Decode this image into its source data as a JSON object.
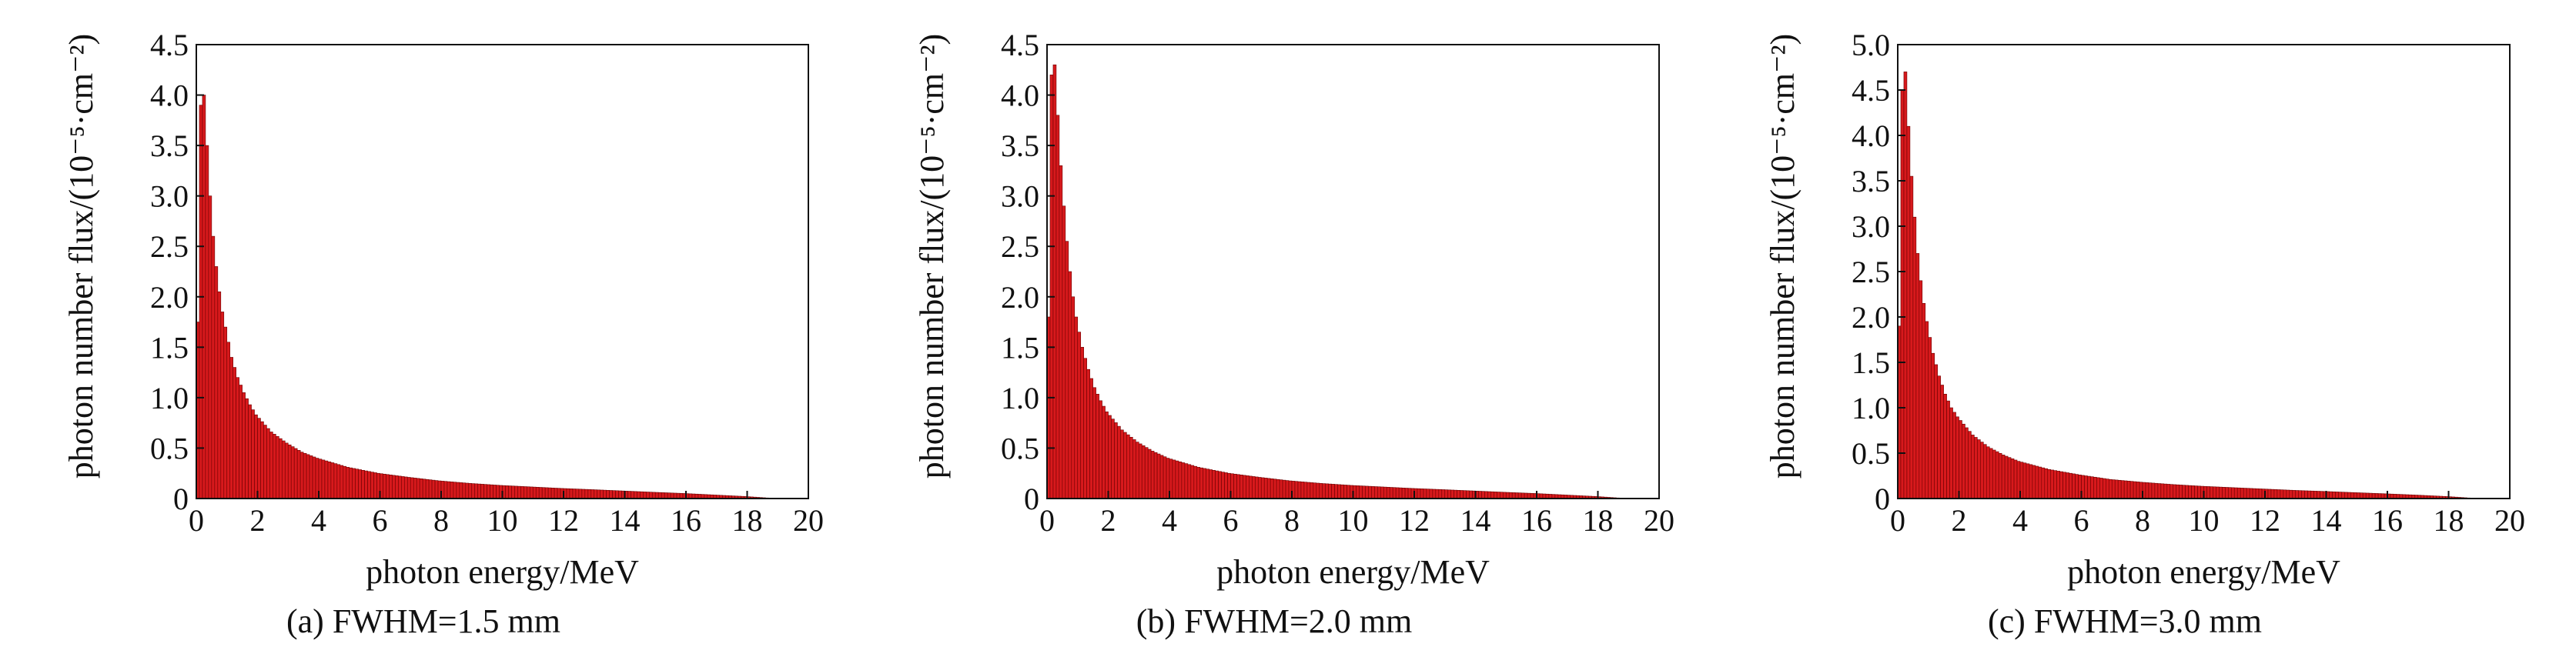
{
  "chart_data": [
    {
      "type": "bar",
      "caption": "(a) FWHM=1.5 mm",
      "xlabel": "photon energy/MeV",
      "ylabel": "photon number flux/(10⁻⁵·cm⁻²)",
      "xlim": [
        0,
        20
      ],
      "ylim": [
        0,
        4.5
      ],
      "xticks": [
        0,
        2,
        4,
        6,
        8,
        10,
        12,
        14,
        16,
        18,
        20
      ],
      "yticks": [
        0,
        0.5,
        1.0,
        1.5,
        2.0,
        2.5,
        3.0,
        3.5,
        4.0,
        4.5
      ],
      "ytick_labels": [
        "0",
        "0.5",
        "1.0",
        "1.5",
        "2.0",
        "2.5",
        "3.0",
        "3.5",
        "4.0",
        "4.5"
      ],
      "bar_width": 0.1,
      "x": [
        0.1,
        0.2,
        0.3,
        0.4,
        0.5,
        0.6,
        0.7,
        0.8,
        0.9,
        1.0,
        1.2,
        1.4,
        1.6,
        1.8,
        2.0,
        2.5,
        3.0,
        3.5,
        4.0,
        5.0,
        6.0,
        7.0,
        8.0,
        9.0,
        10.0,
        11.0,
        12.0,
        13.0,
        14.0,
        15.0,
        16.0,
        17.0,
        18.0,
        19.0
      ],
      "values": [
        1.75,
        3.9,
        4.0,
        3.5,
        3.0,
        2.6,
        2.3,
        2.05,
        1.85,
        1.7,
        1.4,
        1.2,
        1.05,
        0.93,
        0.83,
        0.66,
        0.55,
        0.46,
        0.4,
        0.31,
        0.25,
        0.21,
        0.175,
        0.15,
        0.13,
        0.115,
        0.1,
        0.088,
        0.075,
        0.062,
        0.05,
        0.035,
        0.02,
        0.0
      ],
      "bar_color": "#d7191c",
      "edge_color": "#6b0000",
      "grid": false,
      "legend": "none"
    },
    {
      "type": "bar",
      "caption": "(b) FWHM=2.0 mm",
      "xlabel": "photon energy/MeV",
      "ylabel": "photon number flux/(10⁻⁵·cm⁻²)",
      "xlim": [
        0,
        20
      ],
      "ylim": [
        0,
        4.5
      ],
      "xticks": [
        0,
        2,
        4,
        6,
        8,
        10,
        12,
        14,
        16,
        18,
        20
      ],
      "yticks": [
        0,
        0.5,
        1.0,
        1.5,
        2.0,
        2.5,
        3.0,
        3.5,
        4.0,
        4.5
      ],
      "ytick_labels": [
        "0",
        "0.5",
        "1.0",
        "1.5",
        "2.0",
        "2.5",
        "3.0",
        "3.5",
        "4.0",
        "4.5"
      ],
      "bar_width": 0.1,
      "x": [
        0.1,
        0.2,
        0.3,
        0.4,
        0.5,
        0.6,
        0.7,
        0.8,
        0.9,
        1.0,
        1.2,
        1.4,
        1.6,
        1.8,
        2.0,
        2.5,
        3.0,
        3.5,
        4.0,
        5.0,
        6.0,
        7.0,
        8.0,
        9.0,
        10.0,
        11.0,
        12.0,
        13.0,
        14.0,
        15.0,
        16.0,
        17.0,
        18.0,
        19.0
      ],
      "values": [
        1.8,
        4.2,
        4.3,
        3.8,
        3.3,
        2.9,
        2.55,
        2.25,
        2.0,
        1.8,
        1.5,
        1.28,
        1.1,
        0.97,
        0.86,
        0.68,
        0.56,
        0.47,
        0.4,
        0.31,
        0.25,
        0.21,
        0.175,
        0.15,
        0.13,
        0.115,
        0.1,
        0.088,
        0.075,
        0.062,
        0.05,
        0.035,
        0.02,
        0.0
      ],
      "bar_color": "#d7191c",
      "edge_color": "#6b0000",
      "grid": false,
      "legend": "none"
    },
    {
      "type": "bar",
      "caption": "(c) FWHM=3.0 mm",
      "xlabel": "photon energy/MeV",
      "ylabel": "photon number flux/(10⁻⁵·cm⁻²)",
      "xlim": [
        0,
        20
      ],
      "ylim": [
        0,
        5.0
      ],
      "xticks": [
        0,
        2,
        4,
        6,
        8,
        10,
        12,
        14,
        16,
        18,
        20
      ],
      "yticks": [
        0,
        0.5,
        1.0,
        1.5,
        2.0,
        2.5,
        3.0,
        3.5,
        4.0,
        4.5,
        5.0
      ],
      "ytick_labels": [
        "0",
        "0.5",
        "1.0",
        "1.5",
        "2.0",
        "2.5",
        "3.0",
        "3.5",
        "4.0",
        "4.5",
        "5.0"
      ],
      "bar_width": 0.1,
      "x": [
        0.1,
        0.2,
        0.3,
        0.4,
        0.5,
        0.6,
        0.7,
        0.8,
        0.9,
        1.0,
        1.2,
        1.4,
        1.6,
        1.8,
        2.0,
        2.5,
        3.0,
        3.5,
        4.0,
        5.0,
        6.0,
        7.0,
        8.0,
        9.0,
        10.0,
        11.0,
        12.0,
        13.0,
        14.0,
        15.0,
        16.0,
        17.0,
        18.0,
        19.0
      ],
      "values": [
        1.9,
        4.5,
        4.7,
        4.1,
        3.55,
        3.1,
        2.7,
        2.4,
        2.15,
        1.95,
        1.6,
        1.35,
        1.15,
        1.0,
        0.9,
        0.7,
        0.57,
        0.48,
        0.41,
        0.32,
        0.26,
        0.21,
        0.18,
        0.155,
        0.135,
        0.12,
        0.105,
        0.09,
        0.078,
        0.065,
        0.052,
        0.038,
        0.022,
        0.0
      ],
      "bar_color": "#d7191c",
      "edge_color": "#6b0000",
      "grid": false,
      "legend": "none"
    }
  ]
}
